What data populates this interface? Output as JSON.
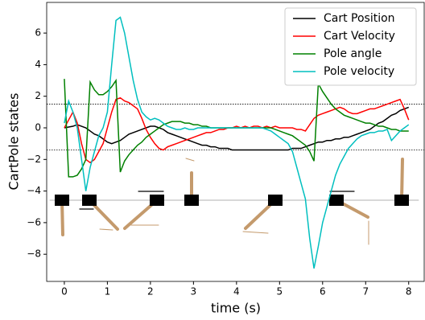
{
  "chart_data": {
    "type": "line",
    "xlabel": "time (s)",
    "ylabel": "CartPole states",
    "x": [
      0,
      0.1,
      0.2,
      0.3,
      0.4,
      0.5,
      0.6,
      0.7,
      0.8,
      0.9,
      1.0,
      1.1,
      1.2,
      1.3,
      1.4,
      1.5,
      1.6,
      1.7,
      1.8,
      1.9,
      2.0,
      2.1,
      2.2,
      2.3,
      2.4,
      2.5,
      2.6,
      2.7,
      2.8,
      2.9,
      3.0,
      3.1,
      3.2,
      3.3,
      3.4,
      3.5,
      3.6,
      3.7,
      3.8,
      3.9,
      4.0,
      4.1,
      4.2,
      4.3,
      4.4,
      4.5,
      4.6,
      4.7,
      4.8,
      4.9,
      5.0,
      5.1,
      5.2,
      5.3,
      5.4,
      5.5,
      5.6,
      5.7,
      5.8,
      5.9,
      6.0,
      6.1,
      6.2,
      6.3,
      6.4,
      6.5,
      6.6,
      6.7,
      6.8,
      6.9,
      7.0,
      7.1,
      7.2,
      7.3,
      7.4,
      7.5,
      7.6,
      7.7,
      7.8,
      7.9,
      8.0
    ],
    "series": [
      {
        "name": "Cart Position",
        "color": "#000000",
        "values": [
          0,
          0.05,
          0.1,
          0.2,
          0.1,
          0,
          -0.2,
          -0.4,
          -0.5,
          -0.7,
          -0.9,
          -1.0,
          -0.9,
          -0.8,
          -0.6,
          -0.4,
          -0.3,
          -0.2,
          -0.1,
          0,
          0.1,
          0.1,
          0,
          -0.1,
          -0.3,
          -0.4,
          -0.5,
          -0.6,
          -0.7,
          -0.8,
          -0.9,
          -1.0,
          -1.1,
          -1.1,
          -1.2,
          -1.2,
          -1.3,
          -1.3,
          -1.3,
          -1.4,
          -1.4,
          -1.4,
          -1.4,
          -1.4,
          -1.4,
          -1.4,
          -1.4,
          -1.4,
          -1.4,
          -1.4,
          -1.4,
          -1.4,
          -1.4,
          -1.3,
          -1.3,
          -1.3,
          -1.2,
          -1.1,
          -1.0,
          -0.9,
          -0.9,
          -0.8,
          -0.8,
          -0.7,
          -0.7,
          -0.6,
          -0.6,
          -0.5,
          -0.4,
          -0.3,
          -0.2,
          -0.1,
          0.1,
          0.3,
          0.4,
          0.6,
          0.8,
          0.9,
          1.1,
          1.2,
          1.3
        ]
      },
      {
        "name": "Cart Velocity",
        "color": "#ff0000",
        "values": [
          0,
          0.5,
          1.0,
          0.3,
          -1.0,
          -2.0,
          -2.2,
          -2.0,
          -1.5,
          -1.0,
          0.0,
          1.0,
          1.8,
          1.9,
          1.7,
          1.6,
          1.4,
          1.2,
          0.6,
          -0.1,
          -0.6,
          -1.0,
          -1.3,
          -1.4,
          -1.2,
          -1.1,
          -1.0,
          -0.9,
          -0.8,
          -0.7,
          -0.6,
          -0.5,
          -0.4,
          -0.3,
          -0.3,
          -0.2,
          -0.1,
          -0.1,
          0,
          0,
          0.1,
          0,
          0.1,
          0,
          0.1,
          0.1,
          0,
          0.1,
          0,
          0.1,
          0,
          0,
          0,
          0,
          -0.1,
          -0.1,
          -0.2,
          0.2,
          0.6,
          0.8,
          0.9,
          1.0,
          1.1,
          1.2,
          1.3,
          1.2,
          1.0,
          0.9,
          0.9,
          1.0,
          1.1,
          1.2,
          1.2,
          1.3,
          1.4,
          1.5,
          1.6,
          1.7,
          1.8,
          1.2,
          0.5
        ]
      },
      {
        "name": "Pole angle",
        "color": "#008000",
        "values": [
          3.1,
          -3.1,
          -3.1,
          -3.0,
          -2.6,
          -2.0,
          2.9,
          2.4,
          2.1,
          2.1,
          2.3,
          2.6,
          3.0,
          -2.8,
          -2.1,
          -1.7,
          -1.4,
          -1.1,
          -0.9,
          -0.6,
          -0.4,
          -0.2,
          0.0,
          0.2,
          0.3,
          0.4,
          0.4,
          0.4,
          0.3,
          0.3,
          0.2,
          0.2,
          0.1,
          0.1,
          0.0,
          0.0,
          0.0,
          0.0,
          0.0,
          0.0,
          0,
          0,
          0,
          0,
          0,
          0,
          0,
          0,
          0,
          -0.1,
          -0.2,
          -0.3,
          -0.4,
          -0.5,
          -0.7,
          -0.9,
          -1.1,
          -1.5,
          -2.1,
          2.8,
          2.3,
          1.9,
          1.5,
          1.2,
          1.0,
          0.8,
          0.7,
          0.6,
          0.5,
          0.4,
          0.3,
          0.3,
          0.2,
          0.1,
          0.1,
          0.0,
          -0.1,
          -0.1,
          -0.2,
          -0.2,
          -0.2
        ]
      },
      {
        "name": "Pole velocity",
        "color": "#00bfbf",
        "values": [
          0.3,
          1.7,
          1.0,
          0.0,
          -2.0,
          -4.0,
          -2.5,
          -1.5,
          -0.5,
          0.0,
          1.0,
          4.0,
          6.8,
          7.0,
          6.0,
          4.5,
          3.0,
          1.8,
          1.0,
          0.7,
          0.5,
          0.6,
          0.5,
          0.3,
          0.1,
          0.0,
          -0.1,
          -0.1,
          0.0,
          -0.1,
          -0.1,
          0.0,
          0.0,
          0.0,
          0.0,
          0.0,
          0.0,
          0.0,
          0.0,
          0.0,
          0,
          0,
          0,
          0,
          0,
          0,
          0,
          -0.1,
          -0.2,
          -0.4,
          -0.6,
          -0.8,
          -1.0,
          -1.5,
          -2.5,
          -3.5,
          -4.5,
          -7.0,
          -8.9,
          -7.5,
          -6.0,
          -5.0,
          -4.0,
          -3.0,
          -2.3,
          -1.8,
          -1.3,
          -1.0,
          -0.7,
          -0.5,
          -0.4,
          -0.3,
          -0.3,
          -0.2,
          -0.2,
          -0.1,
          -0.8,
          -0.5,
          -0.2,
          0.0,
          0.2
        ]
      }
    ],
    "hlines": [
      1.5,
      -1.4
    ],
    "xlim": [
      -0.41,
      8.36
    ],
    "ylim": [
      -9.72,
      7.94
    ],
    "xticks": [
      0,
      1,
      2,
      3,
      4,
      5,
      6,
      7,
      8
    ],
    "yticks": [
      {
        "value": -8,
        "label": "−8"
      },
      {
        "value": -6,
        "label": "−6"
      },
      {
        "value": -4,
        "label": "−4"
      },
      {
        "value": -2,
        "label": "−2"
      },
      0,
      2,
      4,
      6
    ],
    "legend": "upper right"
  }
}
